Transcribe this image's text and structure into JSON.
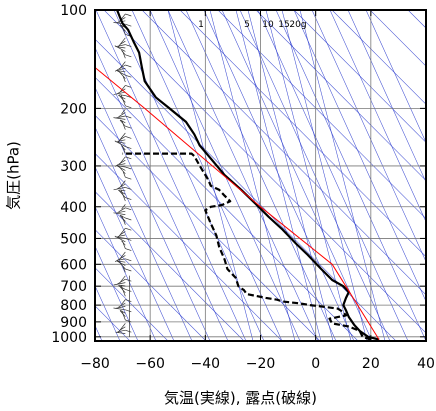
{
  "chart_data": {
    "type": "line",
    "title": "",
    "xlabel": "気温(実線), 露点(破線)",
    "ylabel": "気圧(hPa)",
    "xlim": [
      -80,
      40
    ],
    "ylim": [
      1030,
      100
    ],
    "yscale": "log",
    "x_ticks": [
      -80,
      -60,
      -40,
      -20,
      0,
      20,
      40
    ],
    "x_tick_labels": [
      "−80",
      "−60",
      "−40",
      "−20",
      "0",
      "20",
      "40"
    ],
    "y_ticks": [
      100,
      200,
      300,
      400,
      500,
      600,
      700,
      800,
      900,
      1000
    ],
    "y_tick_labels": [
      "100",
      "200",
      "300",
      "400",
      "500",
      "600",
      "700",
      "800",
      "900",
      "1000"
    ],
    "mixing_ratio_labels": [
      "1",
      "5",
      "10",
      "15",
      "20g"
    ],
    "series": [
      {
        "style": "solid",
        "color": "#000000",
        "points": [
          [
            23,
            1020
          ],
          [
            19,
            1000
          ],
          [
            16,
            960
          ],
          [
            14,
            920
          ],
          [
            12,
            870
          ],
          [
            11,
            830
          ],
          [
            10,
            800
          ],
          [
            11,
            760
          ],
          [
            12,
            730
          ],
          [
            10,
            700
          ],
          [
            6,
            670
          ],
          [
            2,
            620
          ],
          [
            -3,
            560
          ],
          [
            -7,
            520
          ],
          [
            -12,
            470
          ],
          [
            -17,
            430
          ],
          [
            -22,
            390
          ],
          [
            -27,
            355
          ],
          [
            -33,
            320
          ],
          [
            -38,
            285
          ],
          [
            -42,
            260
          ],
          [
            -44,
            240
          ],
          [
            -47,
            220
          ],
          [
            -53,
            200
          ],
          [
            -58,
            185
          ],
          [
            -62,
            165
          ],
          [
            -63,
            150
          ],
          [
            -64,
            135
          ],
          [
            -66,
            125
          ],
          [
            -68,
            115
          ],
          [
            -70,
            110
          ],
          [
            -71,
            105
          ],
          [
            -72,
            100
          ]
        ]
      },
      {
        "style": "dashed",
        "color": "#000000",
        "points": [
          [
            20,
            1020
          ],
          [
            17,
            1000
          ],
          [
            16,
            960
          ],
          [
            12,
            930
          ],
          [
            6,
            910
          ],
          [
            5,
            880
          ],
          [
            11,
            860
          ],
          [
            10,
            840
          ],
          [
            8,
            820
          ],
          [
            -2,
            800
          ],
          [
            -6,
            790
          ],
          [
            -12,
            780
          ],
          [
            -14,
            770
          ],
          [
            -18,
            760
          ],
          [
            -25,
            740
          ],
          [
            -26,
            720
          ],
          [
            -28,
            700
          ],
          [
            -29,
            660
          ],
          [
            -32,
            620
          ],
          [
            -33,
            580
          ],
          [
            -35,
            530
          ],
          [
            -36,
            490
          ],
          [
            -38,
            450
          ],
          [
            -40,
            410
          ],
          [
            -38,
            400
          ],
          [
            -34,
            395
          ],
          [
            -31,
            385
          ],
          [
            -33,
            370
          ],
          [
            -35,
            355
          ],
          [
            -38,
            345
          ],
          [
            -39,
            330
          ],
          [
            -41,
            310
          ],
          [
            -42,
            300
          ],
          [
            -44,
            280
          ],
          [
            -45,
            275
          ],
          [
            -70,
            275
          ]
        ]
      },
      {
        "style": "solid",
        "color": "#ff0000",
        "points": [
          [
            23,
            1020
          ],
          [
            6,
            600
          ],
          [
            -20,
            400
          ],
          [
            -62,
            200
          ],
          [
            -80,
            150
          ]
        ]
      }
    ],
    "wind_barb_axis_x": -69,
    "grid": true
  }
}
